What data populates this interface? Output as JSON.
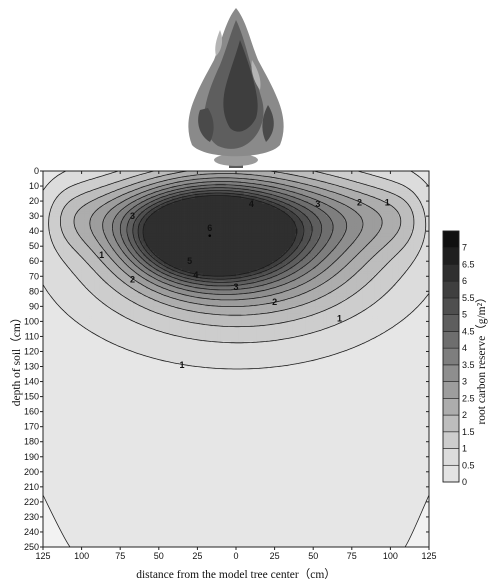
{
  "chart_data": {
    "type": "contour",
    "xlabel": "distance from the model tree center（cm）",
    "ylabel": "depth of soil（cm）",
    "colorbar_label": "root carbon reserve（g/m²）",
    "x_ticks": [
      "125",
      "100",
      "75",
      "50",
      "25",
      "0",
      "25",
      "50",
      "75",
      "100",
      "125"
    ],
    "x_range": [
      -125,
      125
    ],
    "y_ticks": [
      "0",
      "10",
      "20",
      "30",
      "40",
      "50",
      "60",
      "70",
      "80",
      "90",
      "100",
      "110",
      "120",
      "130",
      "140",
      "150",
      "160",
      "170",
      "180",
      "190",
      "200",
      "210",
      "220",
      "230",
      "240",
      "250"
    ],
    "y_range": [
      0,
      250
    ],
    "colorbar_ticks": [
      "0",
      "0.5",
      "1",
      "1.5",
      "2",
      "2.5",
      "3",
      "3.5",
      "4",
      "4.5",
      "5",
      "5.5",
      "6",
      "6.5",
      "7"
    ],
    "colorbar_range": [
      0,
      7.5
    ],
    "contour_levels": [
      0.5,
      1,
      1.5,
      2,
      2.5,
      3,
      3.5,
      4,
      4.5,
      5,
      5.5,
      6
    ],
    "contour_labels": [
      {
        "text": "1",
        "x": -87,
        "y": 56
      },
      {
        "text": "1",
        "x": 98,
        "y": 21
      },
      {
        "text": "1",
        "x": 67,
        "y": 98
      },
      {
        "text": "1",
        "x": -35,
        "y": 129
      },
      {
        "text": "2",
        "x": -67,
        "y": 72
      },
      {
        "text": "2",
        "x": 80,
        "y": 21
      },
      {
        "text": "2",
        "x": 25,
        "y": 87
      },
      {
        "text": "3",
        "x": -67,
        "y": 30
      },
      {
        "text": "3",
        "x": 53,
        "y": 22
      },
      {
        "text": "3",
        "x": 0,
        "y": 77
      },
      {
        "text": "4",
        "x": 10,
        "y": 22
      },
      {
        "text": "4",
        "x": -26,
        "y": 69
      },
      {
        "text": "5",
        "x": -30,
        "y": 60
      },
      {
        "text": "6",
        "x": -17,
        "y": 38
      }
    ],
    "peak": {
      "x": -17,
      "y": 43,
      "value": 7
    }
  }
}
